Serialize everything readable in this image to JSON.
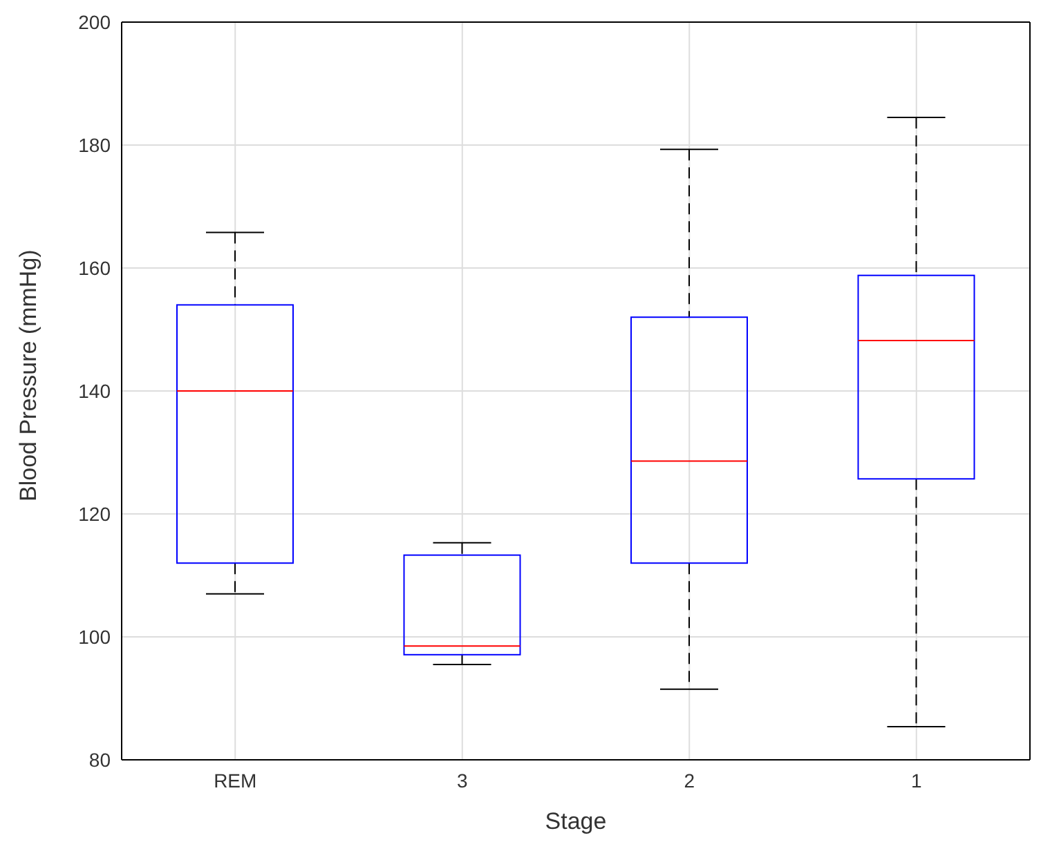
{
  "chart_data": {
    "type": "box",
    "xlabel": "Stage",
    "ylabel": "Blood Pressure (mmHg)",
    "categories": [
      "REM",
      "3",
      "2",
      "1"
    ],
    "series": [
      {
        "color": "#0000ff",
        "boxes": [
          {
            "low": 107,
            "q1": 112,
            "median": 140,
            "q3": 154,
            "high": 165.8
          },
          {
            "low": 95.5,
            "q1": 97.1,
            "median": 98.5,
            "q3": 113.3,
            "high": 115.3
          },
          {
            "low": 91.5,
            "q1": 112,
            "median": 128.6,
            "q3": 152,
            "high": 179.3
          },
          {
            "low": 85.4,
            "q1": 125.7,
            "median": 148.2,
            "q3": 158.8,
            "high": 184.5
          }
        ]
      }
    ],
    "ylim": [
      80,
      200
    ],
    "yticks": [
      80,
      100,
      120,
      140,
      160,
      180,
      200
    ],
    "grid": true,
    "line_style": "dashed"
  }
}
